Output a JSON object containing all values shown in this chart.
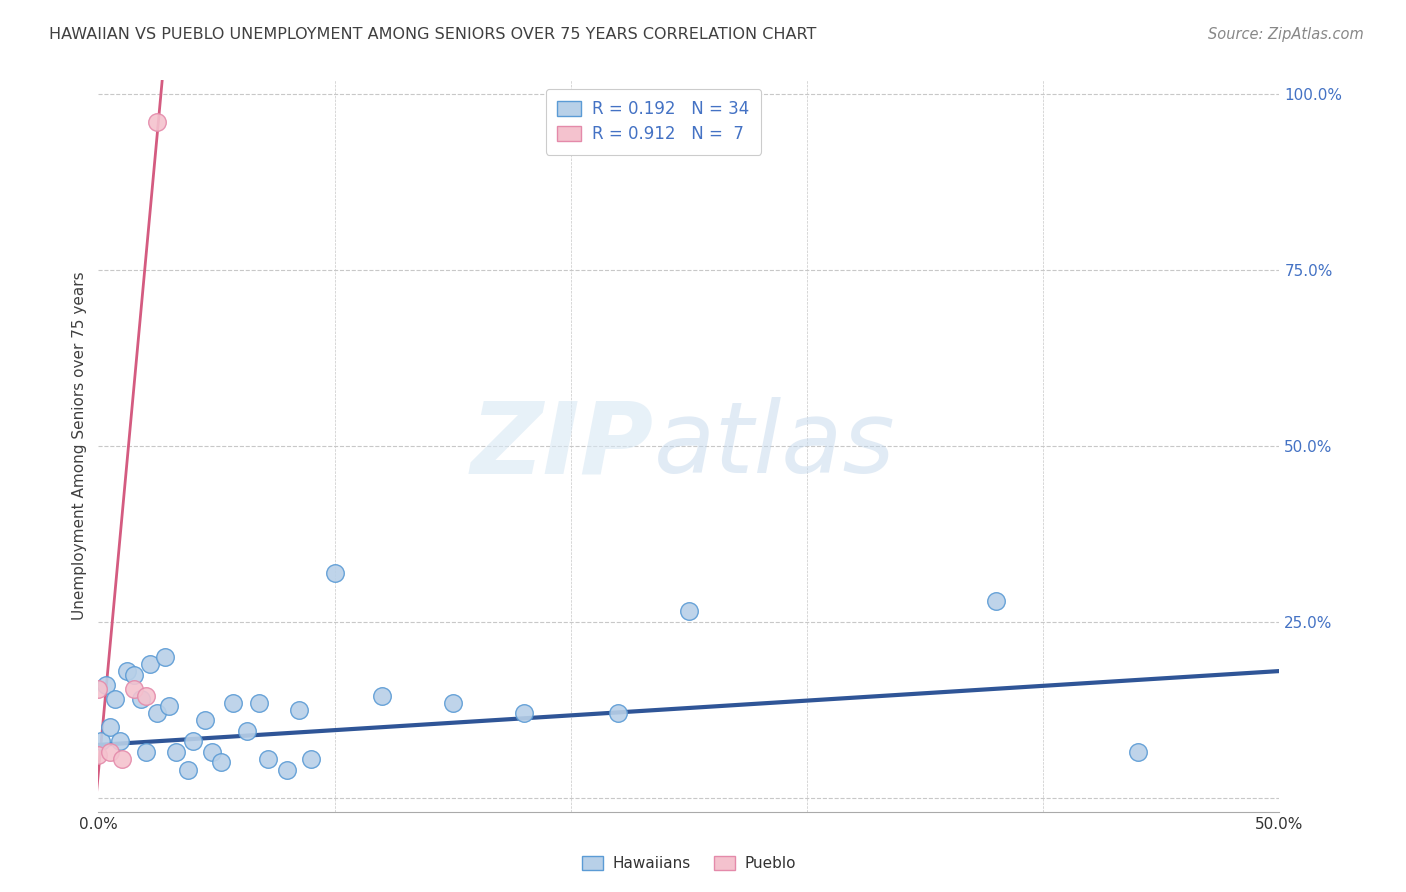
{
  "title": "HAWAIIAN VS PUEBLO UNEMPLOYMENT AMONG SENIORS OVER 75 YEARS CORRELATION CHART",
  "source": "Source: ZipAtlas.com",
  "ylabel": "Unemployment Among Seniors over 75 years",
  "watermark_zip": "ZIP",
  "watermark_atlas": "atlas",
  "legend_hawaiians_label": "Hawaiians",
  "legend_pueblo_label": "Pueblo",
  "hawaiian_R": "0.192",
  "hawaiian_N": "34",
  "pueblo_R": "0.912",
  "pueblo_N": "7",
  "hawaiian_color": "#b8d0e8",
  "hawaiian_edge_color": "#5b9bd5",
  "pueblo_color": "#f4c2ce",
  "pueblo_edge_color": "#e48aaa",
  "hawaiian_line_color": "#2f5597",
  "pueblo_line_color": "#d45b80",
  "legend_text_color": "#4472c4",
  "title_color": "#404040",
  "source_color": "#888888",
  "grid_color": "#c8c8c8",
  "xmin": 0.0,
  "xmax": 0.5,
  "ymin": -0.02,
  "ymax": 1.02,
  "hawaiian_points_x": [
    0.001,
    0.003,
    0.005,
    0.007,
    0.009,
    0.012,
    0.015,
    0.018,
    0.02,
    0.022,
    0.025,
    0.028,
    0.03,
    0.033,
    0.038,
    0.04,
    0.045,
    0.048,
    0.052,
    0.057,
    0.063,
    0.068,
    0.072,
    0.08,
    0.085,
    0.09,
    0.1,
    0.12,
    0.15,
    0.18,
    0.22,
    0.25,
    0.38,
    0.44
  ],
  "hawaiian_points_y": [
    0.08,
    0.16,
    0.1,
    0.14,
    0.08,
    0.18,
    0.175,
    0.14,
    0.065,
    0.19,
    0.12,
    0.2,
    0.13,
    0.065,
    0.04,
    0.08,
    0.11,
    0.065,
    0.05,
    0.135,
    0.095,
    0.135,
    0.055,
    0.04,
    0.125,
    0.055,
    0.32,
    0.145,
    0.135,
    0.12,
    0.12,
    0.265,
    0.28,
    0.065
  ],
  "pueblo_points_x": [
    0.0,
    0.0,
    0.005,
    0.01,
    0.015,
    0.02,
    0.025
  ],
  "pueblo_points_y": [
    0.155,
    0.06,
    0.065,
    0.055,
    0.155,
    0.145,
    0.96
  ],
  "hawaiian_trend_x": [
    0.0,
    0.5
  ],
  "hawaiian_trend_y": [
    0.075,
    0.18
  ],
  "pueblo_trend_x": [
    -0.001,
    0.027
  ],
  "pueblo_trend_y": [
    0.0,
    1.02
  ]
}
